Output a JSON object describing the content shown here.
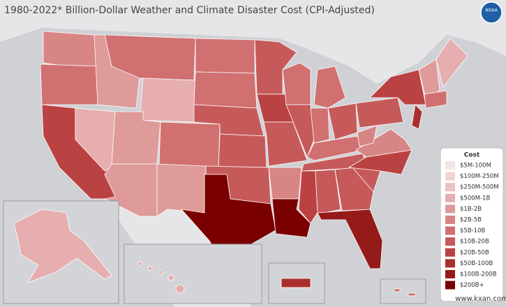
{
  "title": "1980-2022* Billion-Dollar Weather and Climate Disaster Cost (CPI-Adjusted)",
  "logo": "NOAA",
  "legend": {
    "title": "Cost",
    "items": [
      {
        "label": "$5M-100M",
        "color": "#f7e4e4"
      },
      {
        "label": "$100M-250M",
        "color": "#f2d3d3"
      },
      {
        "label": "$250M-500M",
        "color": "#ecc1c1"
      },
      {
        "label": "$500M-1B",
        "color": "#e6aeae"
      },
      {
        "label": "$1B-2B",
        "color": "#df9a9a"
      },
      {
        "label": "$2B-5B",
        "color": "#d88585"
      },
      {
        "label": "$5B-10B",
        "color": "#d07070"
      },
      {
        "label": "$10B-20B",
        "color": "#c65a5a"
      },
      {
        "label": "$20B-50B",
        "color": "#bb4242"
      },
      {
        "label": "$50B-100B",
        "color": "#ab2e2e"
      },
      {
        "label": "$100B-200B",
        "color": "#951a1a"
      },
      {
        "label": "$200B+",
        "color": "#7a0000"
      }
    ]
  },
  "watermark": "www.kxan.com"
}
